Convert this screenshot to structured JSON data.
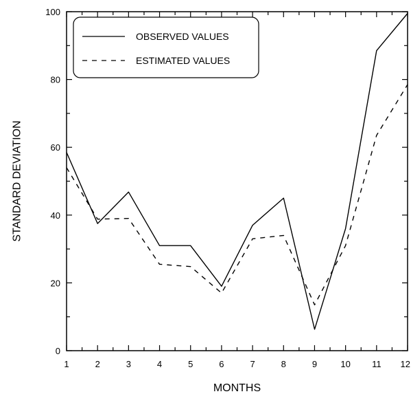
{
  "chart_data": {
    "type": "line",
    "title": "",
    "xlabel": "MONTHS",
    "ylabel": "STANDARD DEVIATION",
    "x": [
      1,
      2,
      3,
      4,
      5,
      6,
      7,
      8,
      9,
      10,
      11,
      12
    ],
    "xlim": [
      1,
      12
    ],
    "ylim": [
      0,
      100
    ],
    "y_ticks": [
      0,
      20,
      40,
      60,
      80,
      100
    ],
    "grid": false,
    "legend_position": "top-left",
    "series": [
      {
        "name": "OBSERVED VALUES",
        "style": "solid",
        "color": "#000000",
        "values": [
          58.5,
          37.5,
          46.8,
          31,
          31,
          19,
          37,
          45,
          6.3,
          36,
          88.5,
          99.5
        ]
      },
      {
        "name": "ESTIMATED VALUES",
        "style": "dashed",
        "color": "#000000",
        "values": [
          54,
          38.8,
          39,
          25.5,
          24.8,
          17,
          33,
          34,
          13.5,
          31,
          63.5,
          78.5
        ]
      }
    ]
  }
}
